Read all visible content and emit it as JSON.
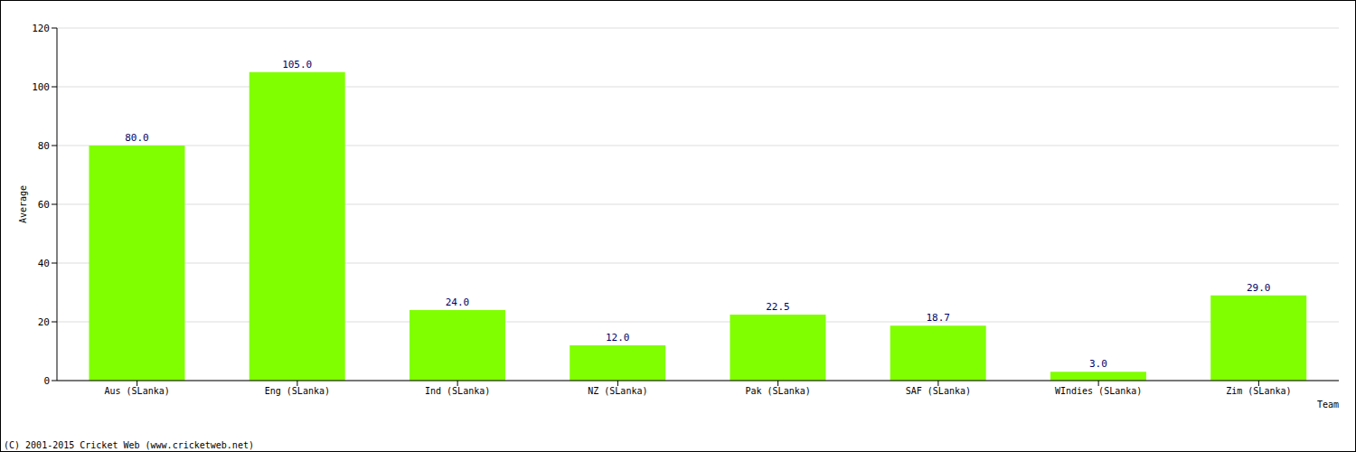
{
  "chart_data": {
    "type": "bar",
    "x_label": "Team",
    "y_label": "Average",
    "annotations": [
      "(C) 2001-2015 Cricket Web (www.cricketweb.net)"
    ],
    "categories": [
      "Aus (SLanka)",
      "Eng (SLanka)",
      "Ind (SLanka)",
      "NZ (SLanka)",
      "Pak (SLanka)",
      "SAF (SLanka)",
      "WIndies (SLanka)",
      "Zim (SLanka)"
    ],
    "values": [
      80.0,
      105.0,
      24.0,
      12.0,
      22.5,
      18.7,
      3.0,
      29.0
    ],
    "value_labels": [
      "80.0",
      "105.0",
      "24.0",
      "12.0",
      "22.5",
      "18.7",
      "3.0",
      "29.0"
    ],
    "color": "#80ff00",
    "ylim": [
      0,
      120
    ],
    "yticks": [
      0,
      20,
      40,
      60,
      80,
      100,
      120
    ],
    "grid": true,
    "data_labels": true
  }
}
